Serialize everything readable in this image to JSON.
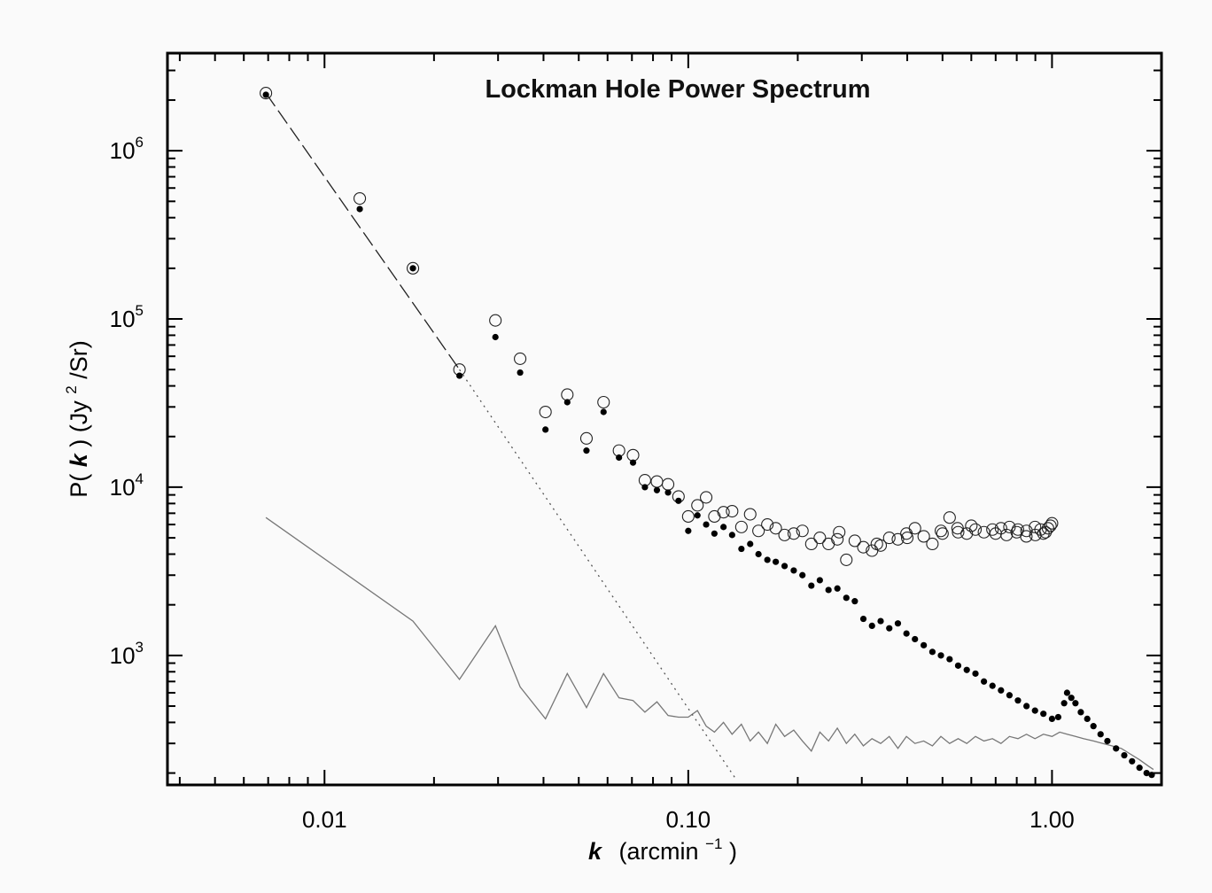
{
  "chart_data": {
    "type": "scatter",
    "title": "Lockman Hole Power Spectrum",
    "xlabel": {
      "symbol": "k",
      "text": "(arcmin",
      "exponent": "−1",
      "close": ")"
    },
    "ylabel": {
      "prefix": "P(",
      "symbol": "k",
      "mid": ")  (Jy",
      "exponent": "2",
      "suffix": "/Sr)"
    },
    "x_scale": "log",
    "y_scale": "log",
    "xlim": [
      0.0037,
      2.0
    ],
    "ylim": [
      170,
      3800000
    ],
    "x_ticks": [
      {
        "value": 0.01,
        "label": "0.01"
      },
      {
        "value": 0.1,
        "label": "0.10"
      },
      {
        "value": 1.0,
        "label": "1.00"
      }
    ],
    "y_ticks": [
      {
        "value": 1000,
        "base": "10",
        "exp": "3"
      },
      {
        "value": 10000,
        "base": "10",
        "exp": "4"
      },
      {
        "value": 100000,
        "base": "10",
        "exp": "5"
      },
      {
        "value": 1000000,
        "base": "10",
        "exp": "6"
      }
    ],
    "grid": false,
    "legend": "none",
    "series": [
      {
        "style": "open-circle",
        "points": [
          [
            0.0069,
            2200000
          ],
          [
            0.0125,
            520000
          ],
          [
            0.0175,
            200000
          ],
          [
            0.0235,
            50000
          ],
          [
            0.0295,
            98000
          ],
          [
            0.0345,
            58000
          ],
          [
            0.0405,
            28000
          ],
          [
            0.0465,
            35500
          ],
          [
            0.0525,
            19500
          ],
          [
            0.0585,
            32000
          ],
          [
            0.0645,
            16500
          ],
          [
            0.0705,
            15500
          ],
          [
            0.076,
            11000
          ],
          [
            0.082,
            10800
          ],
          [
            0.088,
            10400
          ],
          [
            0.094,
            8800
          ],
          [
            0.1,
            6700
          ],
          [
            0.106,
            7800
          ],
          [
            0.112,
            8700
          ],
          [
            0.118,
            6700
          ],
          [
            0.125,
            7100
          ],
          [
            0.132,
            7200
          ],
          [
            0.14,
            5800
          ],
          [
            0.148,
            6900
          ],
          [
            0.156,
            5500
          ],
          [
            0.165,
            6000
          ],
          [
            0.174,
            5700
          ],
          [
            0.184,
            5200
          ],
          [
            0.195,
            5300
          ],
          [
            0.206,
            5500
          ],
          [
            0.218,
            4600
          ],
          [
            0.23,
            5000
          ],
          [
            0.243,
            4600
          ],
          [
            0.257,
            4900
          ],
          [
            0.272,
            3700
          ],
          [
            0.287,
            4800
          ],
          [
            0.303,
            4400
          ],
          [
            0.32,
            4200
          ],
          [
            0.338,
            4500
          ],
          [
            0.357,
            5000
          ],
          [
            0.377,
            4900
          ],
          [
            0.398,
            5300
          ],
          [
            0.42,
            5700
          ],
          [
            0.444,
            5100
          ],
          [
            0.469,
            4600
          ],
          [
            0.495,
            5500
          ],
          [
            0.523,
            6600
          ],
          [
            0.552,
            5400
          ],
          [
            0.583,
            5300
          ],
          [
            0.616,
            5600
          ],
          [
            0.65,
            5400
          ],
          [
            0.686,
            5600
          ],
          [
            0.724,
            5700
          ],
          [
            0.764,
            5800
          ],
          [
            0.806,
            5600
          ],
          [
            0.851,
            5500
          ],
          [
            0.898,
            5800
          ],
          [
            0.947,
            5300
          ],
          [
            0.975,
            5700
          ],
          [
            1.0,
            6100
          ],
          [
            0.26,
            5400
          ],
          [
            0.33,
            4600
          ],
          [
            0.4,
            5000
          ],
          [
            0.5,
            5300
          ],
          [
            0.55,
            5700
          ],
          [
            0.6,
            5900
          ],
          [
            0.7,
            5300
          ],
          [
            0.75,
            5200
          ],
          [
            0.8,
            5400
          ],
          [
            0.85,
            5100
          ],
          [
            0.9,
            5200
          ],
          [
            0.93,
            5600
          ],
          [
            0.96,
            5400
          ],
          [
            0.99,
            5900
          ]
        ]
      },
      {
        "style": "filled-dot",
        "points": [
          [
            0.0069,
            2150000
          ],
          [
            0.0125,
            450000
          ],
          [
            0.0175,
            200000
          ],
          [
            0.0235,
            46000
          ],
          [
            0.0295,
            78000
          ],
          [
            0.0345,
            48000
          ],
          [
            0.0405,
            22000
          ],
          [
            0.0465,
            32000
          ],
          [
            0.0525,
            16500
          ],
          [
            0.0585,
            28000
          ],
          [
            0.0645,
            15000
          ],
          [
            0.0705,
            14000
          ],
          [
            0.076,
            10000
          ],
          [
            0.082,
            9600
          ],
          [
            0.088,
            9300
          ],
          [
            0.094,
            8300
          ],
          [
            0.1,
            5500
          ],
          [
            0.106,
            6800
          ],
          [
            0.112,
            6000
          ],
          [
            0.118,
            5300
          ],
          [
            0.125,
            5800
          ],
          [
            0.132,
            5200
          ],
          [
            0.14,
            4300
          ],
          [
            0.148,
            4600
          ],
          [
            0.156,
            4000
          ],
          [
            0.165,
            3700
          ],
          [
            0.174,
            3600
          ],
          [
            0.184,
            3400
          ],
          [
            0.195,
            3200
          ],
          [
            0.206,
            3000
          ],
          [
            0.218,
            2600
          ],
          [
            0.23,
            2800
          ],
          [
            0.243,
            2450
          ],
          [
            0.257,
            2500
          ],
          [
            0.272,
            2200
          ],
          [
            0.287,
            2100
          ],
          [
            0.303,
            1650
          ],
          [
            0.32,
            1500
          ],
          [
            0.338,
            1600
          ],
          [
            0.357,
            1450
          ],
          [
            0.377,
            1550
          ],
          [
            0.398,
            1350
          ],
          [
            0.42,
            1250
          ],
          [
            0.444,
            1150
          ],
          [
            0.469,
            1050
          ],
          [
            0.495,
            1000
          ],
          [
            0.523,
            950
          ],
          [
            0.552,
            870
          ],
          [
            0.583,
            820
          ],
          [
            0.616,
            780
          ],
          [
            0.65,
            700
          ],
          [
            0.686,
            660
          ],
          [
            0.724,
            620
          ],
          [
            0.764,
            580
          ],
          [
            0.806,
            540
          ],
          [
            0.851,
            500
          ],
          [
            0.898,
            470
          ],
          [
            0.947,
            450
          ],
          [
            1.0,
            420
          ],
          [
            1.04,
            430
          ],
          [
            1.08,
            520
          ],
          [
            1.1,
            600
          ],
          [
            1.13,
            560
          ],
          [
            1.16,
            520
          ],
          [
            1.2,
            460
          ],
          [
            1.25,
            420
          ],
          [
            1.3,
            380
          ],
          [
            1.36,
            340
          ],
          [
            1.42,
            310
          ],
          [
            1.5,
            280
          ],
          [
            1.58,
            255
          ],
          [
            1.66,
            235
          ],
          [
            1.74,
            215
          ],
          [
            1.82,
            200
          ],
          [
            1.88,
            195
          ]
        ]
      },
      {
        "style": "grey-line",
        "points": [
          [
            0.0069,
            6600
          ],
          [
            0.0175,
            1600
          ],
          [
            0.0235,
            720
          ],
          [
            0.0295,
            1500
          ],
          [
            0.0345,
            650
          ],
          [
            0.0405,
            420
          ],
          [
            0.0465,
            780
          ],
          [
            0.0525,
            490
          ],
          [
            0.0585,
            780
          ],
          [
            0.0645,
            560
          ],
          [
            0.0705,
            540
          ],
          [
            0.076,
            460
          ],
          [
            0.082,
            530
          ],
          [
            0.088,
            440
          ],
          [
            0.094,
            430
          ],
          [
            0.1,
            430
          ],
          [
            0.106,
            470
          ],
          [
            0.112,
            380
          ],
          [
            0.118,
            350
          ],
          [
            0.125,
            400
          ],
          [
            0.132,
            340
          ],
          [
            0.14,
            390
          ],
          [
            0.148,
            310
          ],
          [
            0.156,
            350
          ],
          [
            0.165,
            300
          ],
          [
            0.174,
            390
          ],
          [
            0.184,
            330
          ],
          [
            0.195,
            360
          ],
          [
            0.206,
            310
          ],
          [
            0.218,
            270
          ],
          [
            0.23,
            350
          ],
          [
            0.243,
            310
          ],
          [
            0.257,
            370
          ],
          [
            0.272,
            300
          ],
          [
            0.287,
            340
          ],
          [
            0.303,
            290
          ],
          [
            0.32,
            320
          ],
          [
            0.338,
            300
          ],
          [
            0.357,
            330
          ],
          [
            0.377,
            280
          ],
          [
            0.398,
            330
          ],
          [
            0.42,
            300
          ],
          [
            0.444,
            310
          ],
          [
            0.469,
            290
          ],
          [
            0.495,
            330
          ],
          [
            0.523,
            300
          ],
          [
            0.552,
            320
          ],
          [
            0.583,
            300
          ],
          [
            0.616,
            330
          ],
          [
            0.65,
            310
          ],
          [
            0.686,
            320
          ],
          [
            0.724,
            300
          ],
          [
            0.764,
            330
          ],
          [
            0.806,
            320
          ],
          [
            0.851,
            340
          ],
          [
            0.898,
            320
          ],
          [
            0.947,
            340
          ],
          [
            1.0,
            330
          ],
          [
            1.05,
            350
          ],
          [
            1.1,
            340
          ],
          [
            1.16,
            330
          ],
          [
            1.22,
            320
          ],
          [
            1.3,
            310
          ],
          [
            1.38,
            300
          ],
          [
            1.46,
            290
          ],
          [
            1.55,
            280
          ],
          [
            1.64,
            260
          ],
          [
            1.74,
            240
          ],
          [
            1.84,
            220
          ],
          [
            1.9,
            210
          ]
        ]
      },
      {
        "style": "dashed-fit",
        "points": [
          [
            0.0069,
            2200000
          ],
          [
            0.0235,
            50000
          ]
        ]
      },
      {
        "style": "dotted-fit",
        "points": [
          [
            0.0235,
            50000
          ],
          [
            0.135,
            185
          ]
        ]
      }
    ]
  }
}
